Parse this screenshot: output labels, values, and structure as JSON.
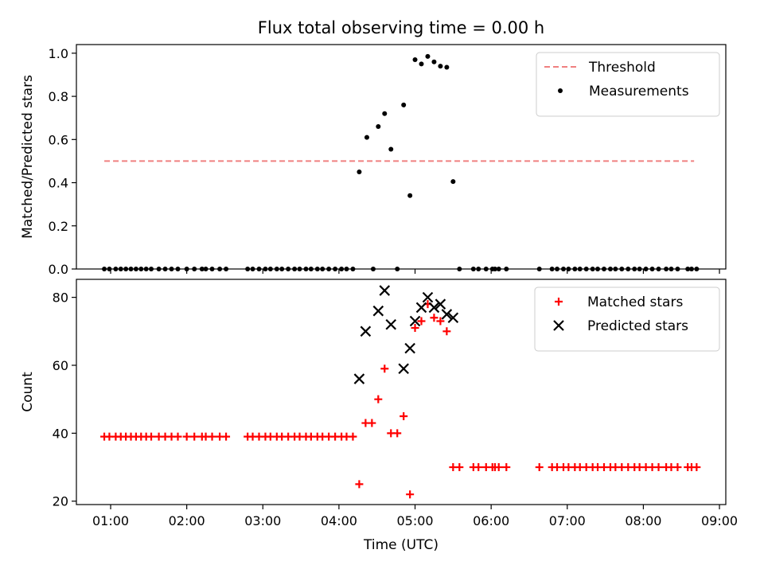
{
  "chart_data": [
    {
      "type": "scatter",
      "title": "Flux total observing time = 0.00 h",
      "xlabel": "",
      "ylabel": "Matched/Predicted stars",
      "ylim": [
        0,
        1.04
      ],
      "yticks": [
        0.0,
        0.2,
        0.4,
        0.6,
        0.8,
        1.0
      ],
      "ytick_labels": [
        "0.0",
        "0.2",
        "0.4",
        "0.6",
        "0.8",
        "1.0"
      ],
      "xlim": [
        "00:33",
        "09:05"
      ],
      "legend_position": "top-right",
      "threshold": {
        "name": "Threshold",
        "value": 0.5,
        "x_start": "00:55",
        "x_end": "08:40",
        "color": "#f08080"
      },
      "series": [
        {
          "name": "Measurements",
          "color": "#000000",
          "points": [
            [
              "00:55",
              0
            ],
            [
              "00:59",
              0
            ],
            [
              "01:04",
              0
            ],
            [
              "01:08",
              0
            ],
            [
              "01:12",
              0
            ],
            [
              "01:16",
              0
            ],
            [
              "01:20",
              0
            ],
            [
              "01:24",
              0
            ],
            [
              "01:28",
              0
            ],
            [
              "01:32",
              0
            ],
            [
              "01:38",
              0
            ],
            [
              "01:43",
              0
            ],
            [
              "01:48",
              0
            ],
            [
              "01:53",
              0
            ],
            [
              "02:00",
              0
            ],
            [
              "02:06",
              0
            ],
            [
              "02:12",
              0
            ],
            [
              "02:15",
              0
            ],
            [
              "02:20",
              0
            ],
            [
              "02:26",
              0
            ],
            [
              "02:31",
              0
            ],
            [
              "02:48",
              0
            ],
            [
              "02:52",
              0
            ],
            [
              "02:57",
              0
            ],
            [
              "03:02",
              0
            ],
            [
              "03:06",
              0
            ],
            [
              "03:11",
              0
            ],
            [
              "03:15",
              0
            ],
            [
              "03:20",
              0
            ],
            [
              "03:25",
              0
            ],
            [
              "03:29",
              0
            ],
            [
              "03:34",
              0
            ],
            [
              "03:38",
              0
            ],
            [
              "03:43",
              0
            ],
            [
              "03:47",
              0
            ],
            [
              "03:52",
              0
            ],
            [
              "03:57",
              0
            ],
            [
              "04:02",
              0
            ],
            [
              "04:06",
              0
            ],
            [
              "04:11",
              0
            ],
            [
              "04:16",
              0.45
            ],
            [
              "04:22",
              0.61
            ],
            [
              "04:27",
              0
            ],
            [
              "04:31",
              0.66
            ],
            [
              "04:36",
              0.72
            ],
            [
              "04:41",
              0.555
            ],
            [
              "04:46",
              0
            ],
            [
              "04:51",
              0.76
            ],
            [
              "04:56",
              0.34
            ],
            [
              "05:00",
              0.97
            ],
            [
              "05:05",
              0.95
            ],
            [
              "05:10",
              0.985
            ],
            [
              "05:15",
              0.96
            ],
            [
              "05:20",
              0.94
            ],
            [
              "05:25",
              0.935
            ],
            [
              "05:30",
              0.405
            ],
            [
              "05:35",
              0
            ],
            [
              "05:46",
              0
            ],
            [
              "05:50",
              0
            ],
            [
              "05:56",
              0
            ],
            [
              "06:01",
              0
            ],
            [
              "06:03",
              0
            ],
            [
              "06:06",
              0
            ],
            [
              "06:12",
              0
            ],
            [
              "06:38",
              0
            ],
            [
              "06:48",
              0
            ],
            [
              "06:52",
              0
            ],
            [
              "06:57",
              0
            ],
            [
              "07:01",
              0
            ],
            [
              "07:06",
              0
            ],
            [
              "07:10",
              0
            ],
            [
              "07:15",
              0
            ],
            [
              "07:20",
              0
            ],
            [
              "07:24",
              0
            ],
            [
              "07:29",
              0
            ],
            [
              "07:34",
              0
            ],
            [
              "07:38",
              0
            ],
            [
              "07:43",
              0
            ],
            [
              "07:48",
              0
            ],
            [
              "07:53",
              0
            ],
            [
              "07:57",
              0
            ],
            [
              "08:02",
              0
            ],
            [
              "08:07",
              0
            ],
            [
              "08:12",
              0
            ],
            [
              "08:18",
              0
            ],
            [
              "08:22",
              0
            ],
            [
              "08:27",
              0
            ],
            [
              "08:35",
              0
            ],
            [
              "08:38",
              0
            ],
            [
              "08:42",
              0
            ]
          ]
        }
      ]
    },
    {
      "type": "scatter",
      "title": "",
      "xlabel": "Time (UTC)",
      "ylabel": "Count",
      "ylim": [
        19.0,
        85.3
      ],
      "yticks": [
        20,
        40,
        60,
        80
      ],
      "ytick_labels": [
        "20",
        "40",
        "60",
        "80"
      ],
      "xlim": [
        "00:33",
        "09:05"
      ],
      "xticks": [
        "01:00",
        "02:00",
        "03:00",
        "04:00",
        "05:00",
        "06:00",
        "07:00",
        "08:00",
        "09:00"
      ],
      "legend_position": "top-right",
      "series": [
        {
          "name": "Matched stars",
          "marker": "plus",
          "color": "#ff0000",
          "points": [
            [
              "00:55",
              39
            ],
            [
              "00:59",
              39
            ],
            [
              "01:04",
              39
            ],
            [
              "01:08",
              39
            ],
            [
              "01:12",
              39
            ],
            [
              "01:16",
              39
            ],
            [
              "01:20",
              39
            ],
            [
              "01:24",
              39
            ],
            [
              "01:28",
              39
            ],
            [
              "01:32",
              39
            ],
            [
              "01:38",
              39
            ],
            [
              "01:43",
              39
            ],
            [
              "01:48",
              39
            ],
            [
              "01:53",
              39
            ],
            [
              "02:00",
              39
            ],
            [
              "02:06",
              39
            ],
            [
              "02:12",
              39
            ],
            [
              "02:15",
              39
            ],
            [
              "02:20",
              39
            ],
            [
              "02:26",
              39
            ],
            [
              "02:31",
              39
            ],
            [
              "02:48",
              39
            ],
            [
              "02:52",
              39
            ],
            [
              "02:57",
              39
            ],
            [
              "03:02",
              39
            ],
            [
              "03:06",
              39
            ],
            [
              "03:11",
              39
            ],
            [
              "03:15",
              39
            ],
            [
              "03:20",
              39
            ],
            [
              "03:25",
              39
            ],
            [
              "03:29",
              39
            ],
            [
              "03:34",
              39
            ],
            [
              "03:38",
              39
            ],
            [
              "03:43",
              39
            ],
            [
              "03:47",
              39
            ],
            [
              "03:52",
              39
            ],
            [
              "03:57",
              39
            ],
            [
              "04:02",
              39
            ],
            [
              "04:06",
              39
            ],
            [
              "04:11",
              39
            ],
            [
              "04:16",
              25
            ],
            [
              "04:21",
              43
            ],
            [
              "04:26",
              43
            ],
            [
              "04:31",
              50
            ],
            [
              "04:36",
              59
            ],
            [
              "04:41",
              40
            ],
            [
              "04:46",
              40
            ],
            [
              "04:51",
              45
            ],
            [
              "04:56",
              22
            ],
            [
              "05:00",
              71
            ],
            [
              "05:05",
              73
            ],
            [
              "05:10",
              78
            ],
            [
              "05:15",
              74
            ],
            [
              "05:20",
              73
            ],
            [
              "05:25",
              70
            ],
            [
              "05:30",
              30
            ],
            [
              "05:35",
              30
            ],
            [
              "05:46",
              30
            ],
            [
              "05:50",
              30
            ],
            [
              "05:56",
              30
            ],
            [
              "06:01",
              30
            ],
            [
              "06:03",
              30
            ],
            [
              "06:06",
              30
            ],
            [
              "06:12",
              30
            ],
            [
              "06:38",
              30
            ],
            [
              "06:48",
              30
            ],
            [
              "06:52",
              30
            ],
            [
              "06:57",
              30
            ],
            [
              "07:01",
              30
            ],
            [
              "07:06",
              30
            ],
            [
              "07:10",
              30
            ],
            [
              "07:15",
              30
            ],
            [
              "07:20",
              30
            ],
            [
              "07:24",
              30
            ],
            [
              "07:29",
              30
            ],
            [
              "07:34",
              30
            ],
            [
              "07:38",
              30
            ],
            [
              "07:43",
              30
            ],
            [
              "07:48",
              30
            ],
            [
              "07:53",
              30
            ],
            [
              "07:57",
              30
            ],
            [
              "08:02",
              30
            ],
            [
              "08:07",
              30
            ],
            [
              "08:12",
              30
            ],
            [
              "08:18",
              30
            ],
            [
              "08:22",
              30
            ],
            [
              "08:27",
              30
            ],
            [
              "08:35",
              30
            ],
            [
              "08:38",
              30
            ],
            [
              "08:42",
              30
            ]
          ]
        },
        {
          "name": "Predicted stars",
          "marker": "x",
          "color": "#000000",
          "points": [
            [
              "04:16",
              56
            ],
            [
              "04:21",
              70
            ],
            [
              "04:31",
              76
            ],
            [
              "04:36",
              82
            ],
            [
              "04:41",
              72
            ],
            [
              "04:51",
              59
            ],
            [
              "04:56",
              65
            ],
            [
              "05:00",
              73
            ],
            [
              "05:05",
              77
            ],
            [
              "05:10",
              80
            ],
            [
              "05:15",
              77
            ],
            [
              "05:20",
              78
            ],
            [
              "05:25",
              75
            ],
            [
              "05:30",
              74
            ]
          ]
        }
      ]
    }
  ]
}
